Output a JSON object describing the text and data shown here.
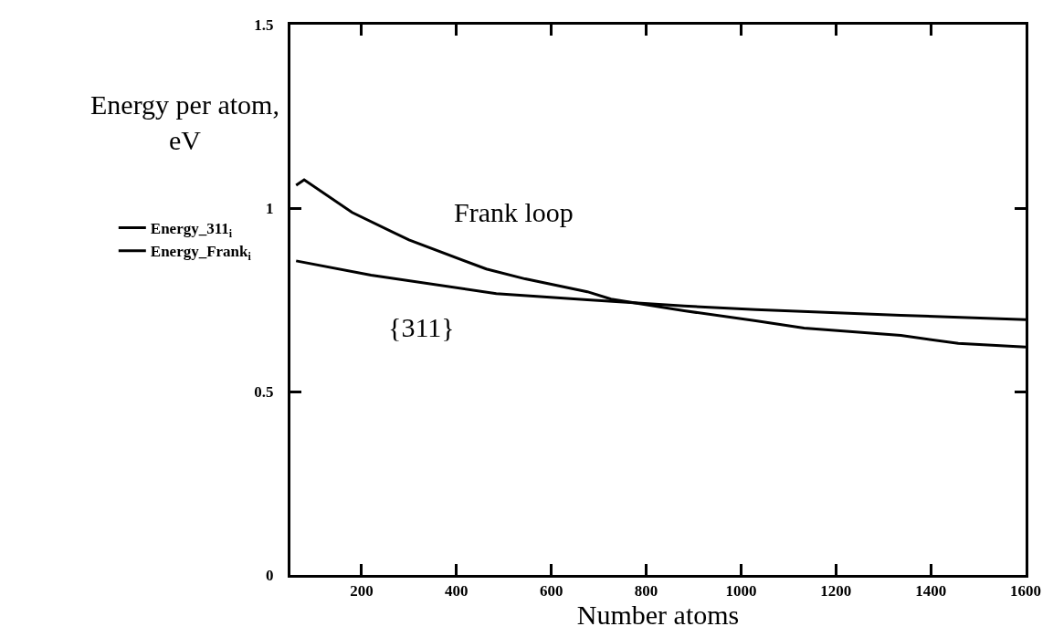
{
  "chart_data": {
    "type": "line",
    "xlabel": "Number atoms",
    "ylabel": "Energy per atom,\neV",
    "xlim": [
      50,
      1600
    ],
    "xticks": [
      200,
      400,
      600,
      800,
      1000,
      1200,
      1400,
      1600
    ],
    "ylim": [
      0,
      1.5
    ],
    "yticks": [
      0,
      0.5,
      1,
      1.5
    ],
    "grid": false,
    "legend": "left",
    "marker": "none",
    "line_style": "solid",
    "series": [
      {
        "name": "Energy_311$_{i}$",
        "color": "#000000",
        "x": [
          62,
          220,
          484,
          676,
          880,
          1031,
          1337,
          1600
        ],
        "values": [
          0.856,
          0.817,
          0.767,
          0.75,
          0.733,
          0.723,
          0.708,
          0.696
        ]
      },
      {
        "name": "Energy_Frank$_{i}$",
        "color": "#000000",
        "x": [
          62,
          79,
          180,
          300,
          463,
          545,
          676,
          726,
          880,
          1031,
          1133,
          1337,
          1458,
          1600
        ],
        "values": [
          1.062,
          1.077,
          0.988,
          0.913,
          0.834,
          0.807,
          0.772,
          0.752,
          0.72,
          0.693,
          0.673,
          0.653,
          0.631,
          0.621
        ]
      }
    ],
    "annotations": [
      "Frank loop",
      "{311}"
    ]
  }
}
